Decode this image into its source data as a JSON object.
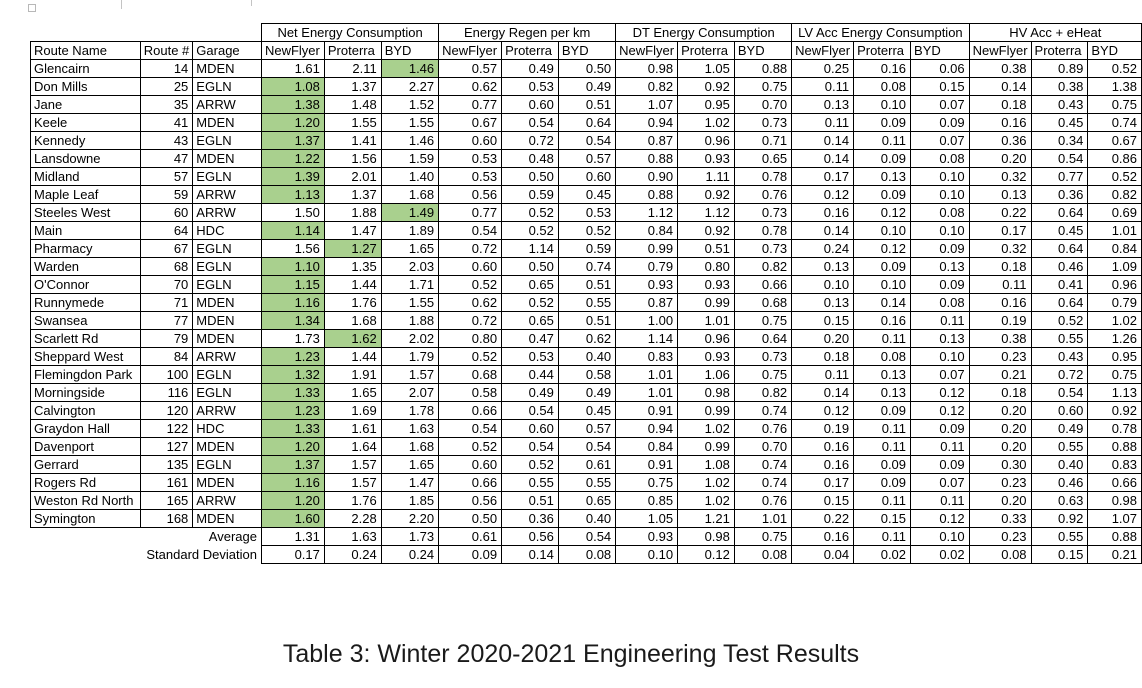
{
  "caption": "Table 3: Winter 2020-2021 Engineering Test Results",
  "table": {
    "group_headers": [
      "Net Energy Consumption",
      "Energy Regen per km",
      "DT Energy Consumption",
      "LV Acc Energy Consumption",
      "HV Acc + eHeat"
    ],
    "id_headers": [
      "Route Name",
      "Route #",
      "Garage"
    ],
    "sub_headers": [
      "NewFlyer",
      "Proterra",
      "BYD"
    ],
    "highlight_color": "#a9d08e",
    "rows": [
      {
        "name": "Glencairn",
        "num": "14",
        "garage": "MDEN",
        "best": 2,
        "v": [
          "1.61",
          "2.11",
          "1.46",
          "0.57",
          "0.49",
          "0.50",
          "0.98",
          "1.05",
          "0.88",
          "0.25",
          "0.16",
          "0.06",
          "0.38",
          "0.89",
          "0.52"
        ]
      },
      {
        "name": "Don Mills",
        "num": "25",
        "garage": "EGLN",
        "best": 0,
        "v": [
          "1.08",
          "1.37",
          "2.27",
          "0.62",
          "0.53",
          "0.49",
          "0.82",
          "0.92",
          "0.75",
          "0.11",
          "0.08",
          "0.15",
          "0.14",
          "0.38",
          "1.38"
        ]
      },
      {
        "name": "Jane",
        "num": "35",
        "garage": "ARRW",
        "best": 0,
        "v": [
          "1.38",
          "1.48",
          "1.52",
          "0.77",
          "0.60",
          "0.51",
          "1.07",
          "0.95",
          "0.70",
          "0.13",
          "0.10",
          "0.07",
          "0.18",
          "0.43",
          "0.75"
        ]
      },
      {
        "name": "Keele",
        "num": "41",
        "garage": "MDEN",
        "best": 0,
        "v": [
          "1.20",
          "1.55",
          "1.55",
          "0.67",
          "0.54",
          "0.64",
          "0.94",
          "1.02",
          "0.73",
          "0.11",
          "0.09",
          "0.09",
          "0.16",
          "0.45",
          "0.74"
        ]
      },
      {
        "name": "Kennedy",
        "num": "43",
        "garage": "EGLN",
        "best": 0,
        "v": [
          "1.37",
          "1.41",
          "1.46",
          "0.60",
          "0.72",
          "0.54",
          "0.87",
          "0.96",
          "0.71",
          "0.14",
          "0.11",
          "0.07",
          "0.36",
          "0.34",
          "0.67"
        ]
      },
      {
        "name": "Lansdowne",
        "num": "47",
        "garage": "MDEN",
        "best": 0,
        "v": [
          "1.22",
          "1.56",
          "1.59",
          "0.53",
          "0.48",
          "0.57",
          "0.88",
          "0.93",
          "0.65",
          "0.14",
          "0.09",
          "0.08",
          "0.20",
          "0.54",
          "0.86"
        ]
      },
      {
        "name": "Midland",
        "num": "57",
        "garage": "EGLN",
        "best": 0,
        "v": [
          "1.39",
          "2.01",
          "1.40",
          "0.53",
          "0.50",
          "0.60",
          "0.90",
          "1.11",
          "0.78",
          "0.17",
          "0.13",
          "0.10",
          "0.32",
          "0.77",
          "0.52"
        ]
      },
      {
        "name": "Maple Leaf",
        "num": "59",
        "garage": "ARRW",
        "best": 0,
        "v": [
          "1.13",
          "1.37",
          "1.68",
          "0.56",
          "0.59",
          "0.45",
          "0.88",
          "0.92",
          "0.76",
          "0.12",
          "0.09",
          "0.10",
          "0.13",
          "0.36",
          "0.82"
        ]
      },
      {
        "name": "Steeles West",
        "num": "60",
        "garage": "ARRW",
        "best": 2,
        "v": [
          "1.50",
          "1.88",
          "1.49",
          "0.77",
          "0.52",
          "0.53",
          "1.12",
          "1.12",
          "0.73",
          "0.16",
          "0.12",
          "0.08",
          "0.22",
          "0.64",
          "0.69"
        ]
      },
      {
        "name": "Main",
        "num": "64",
        "garage": "HDC",
        "best": 0,
        "v": [
          "1.14",
          "1.47",
          "1.89",
          "0.54",
          "0.52",
          "0.52",
          "0.84",
          "0.92",
          "0.78",
          "0.14",
          "0.10",
          "0.10",
          "0.17",
          "0.45",
          "1.01"
        ]
      },
      {
        "name": "Pharmacy",
        "num": "67",
        "garage": "EGLN",
        "best": 1,
        "v": [
          "1.56",
          "1.27",
          "1.65",
          "0.72",
          "1.14",
          "0.59",
          "0.99",
          "0.51",
          "0.73",
          "0.24",
          "0.12",
          "0.09",
          "0.32",
          "0.64",
          "0.84"
        ]
      },
      {
        "name": "Warden",
        "num": "68",
        "garage": "EGLN",
        "best": 0,
        "v": [
          "1.10",
          "1.35",
          "2.03",
          "0.60",
          "0.50",
          "0.74",
          "0.79",
          "0.80",
          "0.82",
          "0.13",
          "0.09",
          "0.13",
          "0.18",
          "0.46",
          "1.09"
        ]
      },
      {
        "name": "O'Connor",
        "num": "70",
        "garage": "EGLN",
        "best": 0,
        "v": [
          "1.15",
          "1.44",
          "1.71",
          "0.52",
          "0.65",
          "0.51",
          "0.93",
          "0.93",
          "0.66",
          "0.10",
          "0.10",
          "0.09",
          "0.11",
          "0.41",
          "0.96"
        ]
      },
      {
        "name": "Runnymede",
        "num": "71",
        "garage": "MDEN",
        "best": 0,
        "v": [
          "1.16",
          "1.76",
          "1.55",
          "0.62",
          "0.52",
          "0.55",
          "0.87",
          "0.99",
          "0.68",
          "0.13",
          "0.14",
          "0.08",
          "0.16",
          "0.64",
          "0.79"
        ]
      },
      {
        "name": "Swansea",
        "num": "77",
        "garage": "MDEN",
        "best": 0,
        "v": [
          "1.34",
          "1.68",
          "1.88",
          "0.72",
          "0.65",
          "0.51",
          "1.00",
          "1.01",
          "0.75",
          "0.15",
          "0.16",
          "0.11",
          "0.19",
          "0.52",
          "1.02"
        ]
      },
      {
        "name": "Scarlett Rd",
        "num": "79",
        "garage": "MDEN",
        "best": 1,
        "v": [
          "1.73",
          "1.62",
          "2.02",
          "0.80",
          "0.47",
          "0.62",
          "1.14",
          "0.96",
          "0.64",
          "0.20",
          "0.11",
          "0.13",
          "0.38",
          "0.55",
          "1.26"
        ]
      },
      {
        "name": "Sheppard West",
        "num": "84",
        "garage": "ARRW",
        "best": 0,
        "v": [
          "1.23",
          "1.44",
          "1.79",
          "0.52",
          "0.53",
          "0.40",
          "0.83",
          "0.93",
          "0.73",
          "0.18",
          "0.08",
          "0.10",
          "0.23",
          "0.43",
          "0.95"
        ]
      },
      {
        "name": "Flemingdon Park",
        "num": "100",
        "garage": "EGLN",
        "best": 0,
        "v": [
          "1.32",
          "1.91",
          "1.57",
          "0.68",
          "0.44",
          "0.58",
          "1.01",
          "1.06",
          "0.75",
          "0.11",
          "0.13",
          "0.07",
          "0.21",
          "0.72",
          "0.75"
        ]
      },
      {
        "name": "Morningside",
        "num": "116",
        "garage": "EGLN",
        "best": 0,
        "v": [
          "1.33",
          "1.65",
          "2.07",
          "0.58",
          "0.49",
          "0.49",
          "1.01",
          "0.98",
          "0.82",
          "0.14",
          "0.13",
          "0.12",
          "0.18",
          "0.54",
          "1.13"
        ]
      },
      {
        "name": "Calvington",
        "num": "120",
        "garage": "ARRW",
        "best": 0,
        "v": [
          "1.23",
          "1.69",
          "1.78",
          "0.66",
          "0.54",
          "0.45",
          "0.91",
          "0.99",
          "0.74",
          "0.12",
          "0.09",
          "0.12",
          "0.20",
          "0.60",
          "0.92"
        ]
      },
      {
        "name": "Graydon Hall",
        "num": "122",
        "garage": "HDC",
        "best": 0,
        "v": [
          "1.33",
          "1.61",
          "1.63",
          "0.54",
          "0.60",
          "0.57",
          "0.94",
          "1.02",
          "0.76",
          "0.19",
          "0.11",
          "0.09",
          "0.20",
          "0.49",
          "0.78"
        ]
      },
      {
        "name": "Davenport",
        "num": "127",
        "garage": "MDEN",
        "best": 0,
        "v": [
          "1.20",
          "1.64",
          "1.68",
          "0.52",
          "0.54",
          "0.54",
          "0.84",
          "0.99",
          "0.70",
          "0.16",
          "0.11",
          "0.11",
          "0.20",
          "0.55",
          "0.88"
        ]
      },
      {
        "name": "Gerrard",
        "num": "135",
        "garage": "EGLN",
        "best": 0,
        "v": [
          "1.37",
          "1.57",
          "1.65",
          "0.60",
          "0.52",
          "0.61",
          "0.91",
          "1.08",
          "0.74",
          "0.16",
          "0.09",
          "0.09",
          "0.30",
          "0.40",
          "0.83"
        ]
      },
      {
        "name": "Rogers Rd",
        "num": "161",
        "garage": "MDEN",
        "best": 0,
        "v": [
          "1.16",
          "1.57",
          "1.47",
          "0.66",
          "0.55",
          "0.55",
          "0.75",
          "1.02",
          "0.74",
          "0.17",
          "0.09",
          "0.07",
          "0.23",
          "0.46",
          "0.66"
        ]
      },
      {
        "name": "Weston Rd North",
        "num": "165",
        "garage": "ARRW",
        "best": 0,
        "v": [
          "1.20",
          "1.76",
          "1.85",
          "0.56",
          "0.51",
          "0.65",
          "0.85",
          "1.02",
          "0.76",
          "0.15",
          "0.11",
          "0.11",
          "0.20",
          "0.63",
          "0.98"
        ]
      },
      {
        "name": "Symington",
        "num": "168",
        "garage": "MDEN",
        "best": 0,
        "v": [
          "1.60",
          "2.28",
          "2.20",
          "0.50",
          "0.36",
          "0.40",
          "1.05",
          "1.21",
          "1.01",
          "0.22",
          "0.15",
          "0.12",
          "0.33",
          "0.92",
          "1.07"
        ]
      }
    ],
    "summary": [
      {
        "label": "Average",
        "v": [
          "1.31",
          "1.63",
          "1.73",
          "0.61",
          "0.56",
          "0.54",
          "0.93",
          "0.98",
          "0.75",
          "0.16",
          "0.11",
          "0.10",
          "0.23",
          "0.55",
          "0.88"
        ]
      },
      {
        "label": "Standard Deviation",
        "v": [
          "0.17",
          "0.24",
          "0.24",
          "0.09",
          "0.14",
          "0.08",
          "0.10",
          "0.12",
          "0.08",
          "0.04",
          "0.02",
          "0.02",
          "0.08",
          "0.15",
          "0.21"
        ]
      }
    ]
  }
}
